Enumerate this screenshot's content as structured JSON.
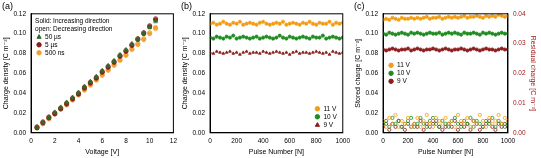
{
  "chart_data": [
    {
      "type": "scatter",
      "title": "(a)",
      "xlabel": "Voltage [V]",
      "ylabel": "Charge density [C m⁻²]",
      "annotations": [
        "Solid: Increasing direction",
        "open: Decreasing direction"
      ],
      "xlim": [
        0,
        12
      ],
      "xticks": [
        0,
        2,
        4,
        6,
        8,
        10,
        12
      ],
      "ylim": [
        0,
        0.12
      ],
      "yticks": [
        {
          "value": 0,
          "label": "0.00"
        },
        {
          "value": 0.02,
          "label": "0.02"
        },
        {
          "value": 0.04,
          "label": "0.04"
        },
        {
          "value": 0.06,
          "label": "0.06"
        },
        {
          "value": 0.08,
          "label": "0.08"
        },
        {
          "value": 0.1,
          "label": "0.10"
        },
        {
          "value": 0.12,
          "label": "0.12"
        }
      ],
      "grid": false,
      "legend": "upper left",
      "x": [
        0.5,
        1,
        1.5,
        2,
        2.5,
        3,
        3.5,
        4,
        4.5,
        5,
        5.5,
        6,
        6.5,
        7,
        7.5,
        8,
        8.5,
        9,
        9.5,
        10,
        10.5
      ],
      "series": [
        {
          "name": "50 µs",
          "color": "#2e6b2e",
          "marker": "triangle",
          "values": [
            0.005,
            0.01,
            0.015,
            0.02,
            0.025,
            0.03,
            0.035,
            0.04,
            0.046,
            0.051,
            0.056,
            0.062,
            0.067,
            0.072,
            0.078,
            0.083,
            0.089,
            0.094,
            0.1,
            0.106,
            0.113
          ]
        },
        {
          "name": "50 µs",
          "color": "#2e6b2e",
          "marker": "triangle_open",
          "values": [
            0.006,
            0.011,
            0.016,
            0.021,
            0.026,
            0.031,
            0.036,
            0.041,
            0.047,
            0.052,
            0.057,
            0.063,
            0.068,
            0.073,
            0.079,
            0.084,
            0.09,
            0.095,
            0.101,
            0.107,
            0.112
          ]
        },
        {
          "name": "5 µs",
          "color": "#8b1c1c",
          "marker": "circle",
          "values": [
            0.005,
            0.01,
            0.015,
            0.019,
            0.024,
            0.029,
            0.034,
            0.039,
            0.045,
            0.05,
            0.055,
            0.061,
            0.066,
            0.071,
            0.077,
            0.082,
            0.088,
            0.094,
            0.1,
            0.107,
            0.114
          ]
        },
        {
          "name": "5 µs",
          "color": "#8b1c1c",
          "marker": "circle_open",
          "values": [
            0.006,
            0.011,
            0.016,
            0.02,
            0.025,
            0.03,
            0.035,
            0.04,
            0.046,
            0.051,
            0.056,
            0.062,
            0.067,
            0.072,
            0.078,
            0.083,
            0.089,
            0.095,
            0.101,
            0.108,
            0.115
          ]
        },
        {
          "name": "500 ns",
          "color": "#f0a030",
          "marker": "circle",
          "values": [
            0.005,
            0.009,
            0.014,
            0.019,
            0.024,
            0.028,
            0.033,
            0.038,
            0.043,
            0.048,
            0.053,
            0.058,
            0.063,
            0.068,
            0.073,
            0.078,
            0.084,
            0.089,
            0.094,
            0.1,
            0.106
          ]
        },
        {
          "name": "500 ns",
          "color": "#f0a030",
          "marker": "circle_open",
          "values": [
            0.005,
            0.01,
            0.015,
            0.02,
            0.025,
            0.029,
            0.034,
            0.039,
            0.044,
            0.049,
            0.054,
            0.059,
            0.064,
            0.069,
            0.074,
            0.079,
            0.085,
            0.09,
            0.095,
            0.101,
            0.105
          ]
        }
      ]
    },
    {
      "type": "scatter",
      "title": "(b)",
      "xlabel": "Pulse Number [N]",
      "ylabel": "Charge density [C m⁻²]",
      "xlim": [
        0,
        1000
      ],
      "xticks": [
        0,
        200,
        400,
        600,
        800,
        1000
      ],
      "ylim": [
        0,
        0.12
      ],
      "yticks": [
        {
          "value": 0,
          "label": "0.00"
        },
        {
          "value": 0.02,
          "label": "0.02"
        },
        {
          "value": 0.04,
          "label": "0.04"
        },
        {
          "value": 0.06,
          "label": "0.06"
        },
        {
          "value": 0.08,
          "label": "0.08"
        },
        {
          "value": 0.1,
          "label": "0.10"
        },
        {
          "value": 0.12,
          "label": "0.12"
        }
      ],
      "grid": false,
      "legend": "lower right",
      "x": [
        0,
        25,
        50,
        75,
        100,
        125,
        150,
        175,
        200,
        225,
        250,
        275,
        300,
        325,
        350,
        375,
        400,
        425,
        450,
        475,
        500,
        525,
        550,
        575,
        600,
        625,
        650,
        675,
        700,
        725,
        750,
        775,
        800,
        825,
        850,
        875,
        900,
        925,
        950,
        975,
        1000
      ],
      "series": [
        {
          "name": "11 V",
          "color": "#f39c12",
          "marker": "circle",
          "values": [
            0.11,
            0.111,
            0.109,
            0.11,
            0.112,
            0.11,
            0.109,
            0.111,
            0.11,
            0.112,
            0.109,
            0.11,
            0.111,
            0.11,
            0.109,
            0.111,
            0.112,
            0.11,
            0.109,
            0.11,
            0.111,
            0.11,
            0.112,
            0.109,
            0.11,
            0.111,
            0.11,
            0.109,
            0.111,
            0.11,
            0.112,
            0.11,
            0.109,
            0.111,
            0.11,
            0.11,
            0.112,
            0.109,
            0.111,
            0.11,
            0.111
          ]
        },
        {
          "name": "10 V",
          "color": "#1e8c1e",
          "marker": "circle",
          "values": [
            0.096,
            0.095,
            0.097,
            0.096,
            0.095,
            0.097,
            0.096,
            0.098,
            0.095,
            0.096,
            0.097,
            0.096,
            0.095,
            0.096,
            0.097,
            0.095,
            0.096,
            0.097,
            0.096,
            0.095,
            0.096,
            0.098,
            0.096,
            0.095,
            0.097,
            0.096,
            0.095,
            0.096,
            0.097,
            0.096,
            0.095,
            0.097,
            0.096,
            0.096,
            0.098,
            0.095,
            0.096,
            0.097,
            0.096,
            0.095,
            0.096
          ]
        },
        {
          "name": "9 V",
          "color": "#8b1c1c",
          "marker": "triangle",
          "values": [
            0.081,
            0.08,
            0.082,
            0.081,
            0.08,
            0.081,
            0.082,
            0.08,
            0.081,
            0.079,
            0.081,
            0.082,
            0.08,
            0.081,
            0.081,
            0.08,
            0.082,
            0.081,
            0.08,
            0.081,
            0.082,
            0.081,
            0.08,
            0.081,
            0.079,
            0.081,
            0.082,
            0.08,
            0.081,
            0.081,
            0.08,
            0.081,
            0.082,
            0.081,
            0.08,
            0.081,
            0.079,
            0.082,
            0.081,
            0.08,
            0.081
          ]
        }
      ]
    },
    {
      "type": "scatter",
      "title": "(c)",
      "xlabel": "Pulse Number [N]",
      "ylabel": "Stored charge [C m⁻²]",
      "y2label": "Residual charge [C m⁻²]",
      "xlim": [
        0,
        1000
      ],
      "xticks": [
        0,
        200,
        400,
        600,
        800,
        1000
      ],
      "ylim": [
        0,
        0.12
      ],
      "yticks": [
        {
          "value": 0,
          "label": "0.00"
        },
        {
          "value": 0.02,
          "label": "0.02"
        },
        {
          "value": 0.04,
          "label": "0.04"
        },
        {
          "value": 0.06,
          "label": "0.06"
        },
        {
          "value": 0.08,
          "label": "0.08"
        },
        {
          "value": 0.1,
          "label": "0.10"
        },
        {
          "value": 0.12,
          "label": "0.12"
        }
      ],
      "y2lim": [
        0,
        0.04
      ],
      "y2ticks": [
        {
          "value": 0,
          "label": "0.00"
        },
        {
          "value": 0.01,
          "label": "0.01"
        },
        {
          "value": 0.02,
          "label": "0.02"
        },
        {
          "value": 0.03,
          "label": "0.03"
        },
        {
          "value": 0.04,
          "label": "0.04"
        }
      ],
      "grid": false,
      "legend": "center left",
      "x": [
        0,
        25,
        50,
        75,
        100,
        125,
        150,
        175,
        200,
        225,
        250,
        275,
        300,
        325,
        350,
        375,
        400,
        425,
        450,
        475,
        500,
        525,
        550,
        575,
        600,
        625,
        650,
        675,
        700,
        725,
        750,
        775,
        800,
        825,
        850,
        875,
        900,
        925,
        950,
        975,
        1000
      ],
      "series": [
        {
          "name": "11 V",
          "color": "#f39c12",
          "marker": "circle",
          "values": [
            0.114,
            0.115,
            0.114,
            0.116,
            0.115,
            0.114,
            0.116,
            0.115,
            0.115,
            0.116,
            0.115,
            0.116,
            0.115,
            0.116,
            0.117,
            0.115,
            0.116,
            0.116,
            0.117,
            0.115,
            0.116,
            0.117,
            0.116,
            0.117,
            0.116,
            0.117,
            0.118,
            0.116,
            0.117,
            0.117,
            0.118,
            0.117,
            0.116,
            0.118,
            0.117,
            0.118,
            0.117,
            0.119,
            0.118,
            0.117,
            0.118
          ]
        },
        {
          "name": "10 V",
          "color": "#1e8c1e",
          "marker": "circle",
          "values": [
            0.1,
            0.099,
            0.101,
            0.1,
            0.099,
            0.1,
            0.101,
            0.1,
            0.099,
            0.101,
            0.1,
            0.101,
            0.1,
            0.099,
            0.1,
            0.101,
            0.1,
            0.1,
            0.101,
            0.099,
            0.1,
            0.101,
            0.1,
            0.101,
            0.1,
            0.099,
            0.101,
            0.1,
            0.1,
            0.101,
            0.1,
            0.099,
            0.101,
            0.1,
            0.101,
            0.1,
            0.099,
            0.1,
            0.101,
            0.1,
            0.1
          ]
        },
        {
          "name": "9 V",
          "color": "#8b1c1c",
          "marker": "circle",
          "values": [
            0.084,
            0.083,
            0.084,
            0.085,
            0.084,
            0.083,
            0.084,
            0.084,
            0.085,
            0.083,
            0.084,
            0.085,
            0.084,
            0.083,
            0.084,
            0.084,
            0.085,
            0.084,
            0.083,
            0.084,
            0.085,
            0.084,
            0.083,
            0.084,
            0.084,
            0.085,
            0.084,
            0.083,
            0.084,
            0.085,
            0.084,
            0.083,
            0.084,
            0.085,
            0.084,
            0.084,
            0.083,
            0.084,
            0.085,
            0.084,
            0.084
          ]
        },
        {
          "name": "11 V",
          "color": "#f39c12",
          "marker": "circle_open",
          "axis": "y2",
          "values": [
            0.004,
            0.002,
            0.005,
            0.003,
            0.006,
            0.002,
            0.004,
            0.003,
            0.005,
            0.002,
            0.003,
            0.005,
            0.002,
            0.004,
            0.006,
            0.003,
            0.002,
            0.005,
            0.004,
            0.003,
            0.005,
            0.003,
            0.004,
            0.002,
            0.006,
            0.004,
            0.003,
            0.005,
            0.002,
            0.004,
            0.003,
            0.006,
            0.004,
            0.002,
            0.005,
            0.003,
            0.004,
            0.006,
            0.003,
            0.005,
            0.004
          ]
        },
        {
          "name": "10 V",
          "color": "#1e8c1e",
          "marker": "circle_open",
          "axis": "y2",
          "values": [
            0.003,
            0.004,
            0.002,
            0.005,
            0.003,
            0.004,
            0.002,
            0.003,
            0.004,
            0.005,
            0.002,
            0.003,
            0.005,
            0.003,
            0.002,
            0.004,
            0.005,
            0.003,
            0.002,
            0.004,
            0.003,
            0.002,
            0.004,
            0.005,
            0.003,
            0.002,
            0.004,
            0.003,
            0.005,
            0.002,
            0.004,
            0.003,
            0.002,
            0.004,
            0.003,
            0.005,
            0.002,
            0.004,
            0.003,
            0.002,
            0.003
          ]
        },
        {
          "name": "9 V",
          "color": "#8b1c1c",
          "marker": "circle_open",
          "axis": "y2",
          "values": [
            0.002,
            0.003,
            0.001,
            0.003,
            0.002,
            0.004,
            0.002,
            0.001,
            0.003,
            0.002,
            0.003,
            0.002,
            0.004,
            0.001,
            0.003,
            0.002,
            0.003,
            0.004,
            0.002,
            0.001,
            0.002,
            0.003,
            0.002,
            0.004,
            0.001,
            0.003,
            0.002,
            0.003,
            0.001,
            0.004,
            0.003,
            0.001,
            0.002,
            0.003,
            0.004,
            0.002,
            0.001,
            0.003,
            0.002,
            0.003,
            0.002
          ]
        }
      ]
    }
  ]
}
